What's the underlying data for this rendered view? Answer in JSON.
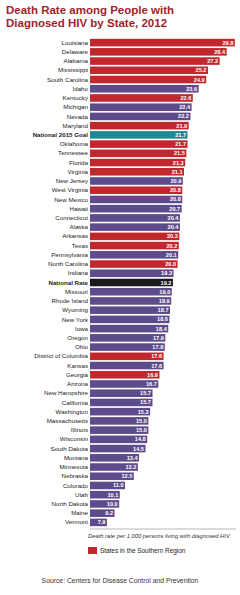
{
  "chart_data": {
    "type": "bar",
    "orientation": "horizontal",
    "title": "Death Rate among People with Diagnosed HIV by State, 2012",
    "x_label": "Death rate per 1,000 persons living with diagnosed HIV",
    "categories": [
      "Louisiana",
      "Delaware",
      "Alabama",
      "Mississippi",
      "South Carolina",
      "Idaho",
      "Kentucky",
      "Michigan",
      "Nevada",
      "Maryland",
      "National 2015 Goal",
      "Oklahoma",
      "Tennessee",
      "Florida",
      "Virginia",
      "New Jersey",
      "West Virginia",
      "New Mexico",
      "Hawaii",
      "Connecticut",
      "Alaska",
      "Arkansas",
      "Texas",
      "Pennsylvania",
      "North Carolina",
      "Indiana",
      "National Rate",
      "Missouri",
      "Rhode Island",
      "Wyoming",
      "New York",
      "Iowa",
      "Oregon",
      "Ohio",
      "District of Columbia",
      "Kansas",
      "Georgia",
      "Arizona",
      "New Hampshire",
      "California",
      "Washington",
      "Massachusetts",
      "Illinois",
      "Wisconsin",
      "South Dakota",
      "Montana",
      "Minnesota",
      "Nebraska",
      "Colorado",
      "Utah",
      "North Dakota",
      "Maine",
      "Vermont"
    ],
    "values": [
      29.8,
      28.4,
      27.2,
      25.2,
      24.9,
      23.6,
      22.6,
      22.4,
      22.2,
      21.9,
      21.7,
      21.7,
      21.5,
      21.3,
      21.1,
      20.9,
      20.8,
      20.8,
      20.7,
      20.4,
      20.4,
      20.3,
      20.2,
      20.1,
      20.0,
      19.3,
      19.2,
      19.0,
      18.9,
      18.7,
      18.6,
      18.4,
      17.9,
      17.8,
      17.6,
      17.6,
      16.9,
      16.7,
      15.7,
      15.7,
      15.3,
      15.0,
      15.0,
      14.8,
      14.5,
      13.4,
      13.2,
      12.5,
      11.0,
      10.1,
      10.0,
      9.2,
      7.9
    ],
    "value_labels": [
      "29.8",
      "28.4",
      "27.2",
      "25.2",
      "24.9",
      "23.6",
      "22.6",
      "22.4",
      "22.2",
      "21.9",
      "21.7",
      "21.7",
      "21.5",
      "21.3",
      "21.1",
      "20.9",
      "20.8",
      "20.8",
      "20.7",
      "20.4",
      "20.4",
      "20.3",
      "20.2",
      "20.1",
      "20.0",
      "19.3",
      "19.2",
      "19.0",
      "18.9",
      "18.7",
      "18.6",
      "18.4",
      "17.9",
      "17.8",
      "17.6",
      "17.6",
      "16.9",
      "16.7",
      "15.7",
      "15.7",
      "15.3",
      "15.0",
      "15.0",
      "14.8",
      "14.5",
      "13.4",
      "13.2",
      "12.5",
      "11.0",
      "10.1",
      "10.0",
      "9.2",
      "7.9"
    ],
    "colors": [
      "#c1272d",
      "#c1272d",
      "#c1272d",
      "#c1272d",
      "#c1272d",
      "#5e4b8b",
      "#c1272d",
      "#5e4b8b",
      "#5e4b8b",
      "#c1272d",
      "#1d8a8f",
      "#c1272d",
      "#c1272d",
      "#c1272d",
      "#c1272d",
      "#5e4b8b",
      "#c1272d",
      "#5e4b8b",
      "#5e4b8b",
      "#5e4b8b",
      "#5e4b8b",
      "#c1272d",
      "#c1272d",
      "#5e4b8b",
      "#c1272d",
      "#5e4b8b",
      "#1a1a1a",
      "#5e4b8b",
      "#5e4b8b",
      "#5e4b8b",
      "#5e4b8b",
      "#5e4b8b",
      "#5e4b8b",
      "#5e4b8b",
      "#c1272d",
      "#5e4b8b",
      "#c1272d",
      "#5e4b8b",
      "#5e4b8b",
      "#5e4b8b",
      "#5e4b8b",
      "#5e4b8b",
      "#5e4b8b",
      "#5e4b8b",
      "#5e4b8b",
      "#5e4b8b",
      "#5e4b8b",
      "#5e4b8b",
      "#5e4b8b",
      "#5e4b8b",
      "#5e4b8b",
      "#5e4b8b",
      "#5e4b8b"
    ],
    "xlim": [
      5,
      30
    ],
    "xticks": [],
    "tick_labels": "y",
    "grid": false,
    "data_labels": true,
    "annotations": [
      {
        "text": "States in the Southern Region",
        "color": "#c1272d"
      },
      {
        "text": "Source: Centers for Disease Control and Prevention"
      }
    ]
  }
}
